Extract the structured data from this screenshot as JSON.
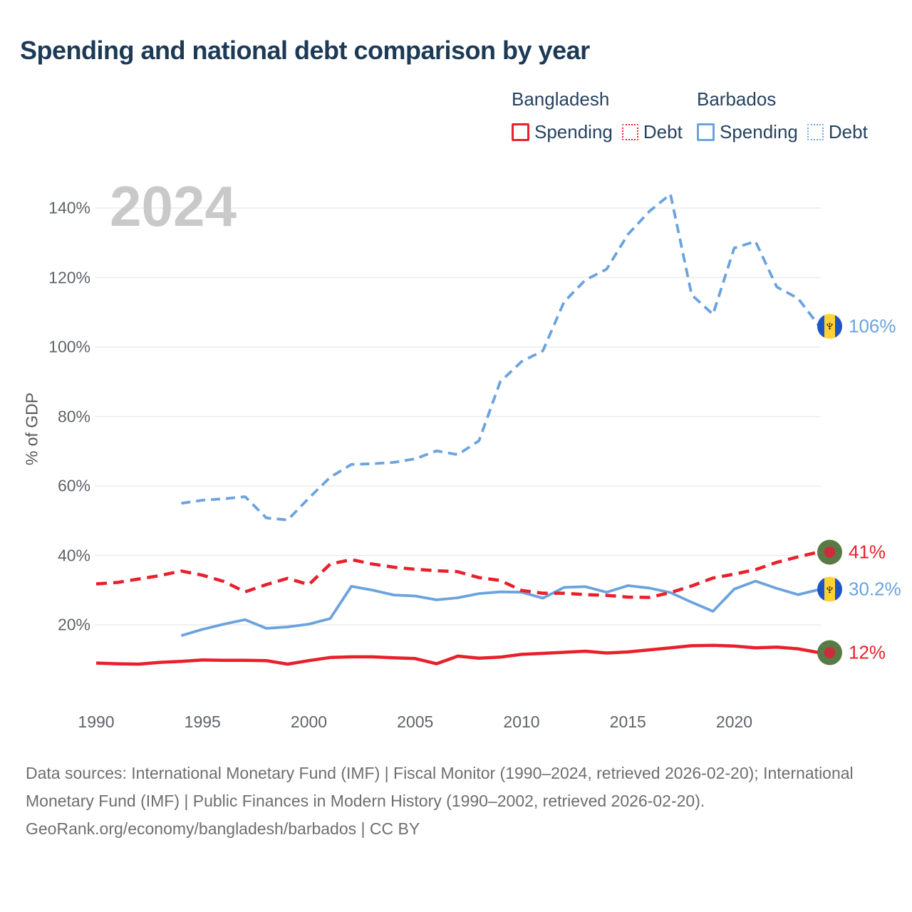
{
  "title": "Spending and national debt comparison by year",
  "watermark": "2024",
  "y_axis_title": "% of GDP",
  "icons": {
    "barbados_trident": "♆",
    "bangladesh_flag": "green circle with red disc",
    "barbados_flag": "blue-gold-blue circle with black trident"
  },
  "colors": {
    "bangladesh_line": "#e8202c",
    "barbados_line": "#6ba3de",
    "title_text": "#1c3a55",
    "legend_text": "#27425f",
    "axis_text": "#5f6368",
    "gridline": "#ebebeb",
    "watermark": "#c9c9c9",
    "footer_text": "#6e6e6e",
    "bangladesh_flag_field": "#5a7a45",
    "bangladesh_flag_disc": "#ce2b3d",
    "barbados_flag_band": "#1e55c4",
    "barbados_flag_gold": "#ffd233"
  },
  "legend": {
    "groups": [
      {
        "header": "Bangladesh",
        "color": "#e8202c",
        "items": [
          {
            "label": "Spending",
            "line_style": "solid"
          },
          {
            "label": "Debt",
            "line_style": "dotted"
          }
        ]
      },
      {
        "header": "Barbados",
        "color": "#6ba3de",
        "items": [
          {
            "label": "Spending",
            "line_style": "solid"
          },
          {
            "label": "Debt",
            "line_style": "dotted"
          }
        ]
      }
    ]
  },
  "chart_data": {
    "type": "line",
    "title": "Spending and national debt comparison by year",
    "xlabel": "",
    "ylabel": "% of GDP",
    "xlim": [
      1990,
      2024
    ],
    "ylim": [
      0,
      148
    ],
    "grid": "horizontal",
    "legend_position": "top-right",
    "x_ticks": [
      {
        "label": "1990",
        "value": 1990
      },
      {
        "label": "1995",
        "value": 1995
      },
      {
        "label": "2000",
        "value": 2000
      },
      {
        "label": "2005",
        "value": 2005
      },
      {
        "label": "2010",
        "value": 2010
      },
      {
        "label": "2015",
        "value": 2015
      },
      {
        "label": "2020",
        "value": 2020
      }
    ],
    "y_ticks": [
      {
        "label": "20%",
        "value": 20
      },
      {
        "label": "40%",
        "value": 40
      },
      {
        "label": "60%",
        "value": 60
      },
      {
        "label": "80%",
        "value": 80
      },
      {
        "label": "100%",
        "value": 100
      },
      {
        "label": "120%",
        "value": 120
      },
      {
        "label": "140%",
        "value": 140
      }
    ],
    "series": [
      {
        "id": "barbados-spending",
        "name": "Barbados Spending",
        "color": "#6ba3de",
        "line_style": "solid",
        "start_year": 1994,
        "values": [
          16.9,
          18.7,
          20.2,
          21.5,
          19.0,
          19.4,
          20.2,
          21.8,
          31.1,
          30.0,
          28.6,
          28.3,
          27.2,
          27.8,
          29.0,
          29.5,
          29.4,
          27.7,
          30.8,
          31.0,
          29.4,
          31.3,
          30.6,
          29.3,
          26.5,
          23.9,
          30.3,
          32.6,
          30.5,
          28.7,
          30.2
        ]
      },
      {
        "id": "bangladesh-spending",
        "name": "Bangladesh Spending",
        "color": "#e8202c",
        "line_style": "solid",
        "start_year": 1990,
        "values": [
          9.0,
          8.8,
          8.7,
          9.2,
          9.5,
          9.9,
          9.8,
          9.8,
          9.7,
          8.7,
          9.7,
          10.6,
          10.8,
          10.8,
          10.5,
          10.3,
          8.8,
          11.0,
          10.4,
          10.7,
          11.5,
          11.8,
          12.1,
          12.4,
          11.9,
          12.2,
          12.8,
          13.4,
          14.0,
          14.1,
          13.9,
          13.4,
          13.6,
          13.1,
          12.0
        ]
      },
      {
        "id": "bangladesh-debt",
        "name": "Bangladesh Debt",
        "color": "#e8202c",
        "line_style": "dashed",
        "start_year": 1990,
        "values": [
          31.8,
          32.2,
          33.2,
          34.2,
          35.5,
          34.3,
          32.5,
          29.5,
          31.6,
          33.4,
          31.6,
          37.5,
          38.8,
          37.5,
          36.6,
          36.0,
          35.6,
          35.3,
          33.6,
          32.8,
          29.9,
          29.1,
          29.1,
          28.7,
          28.5,
          28.0,
          27.9,
          29.3,
          31.2,
          33.5,
          34.6,
          35.9,
          38.0,
          39.6,
          41.0
        ]
      },
      {
        "id": "barbados-debt",
        "name": "Barbados Debt",
        "color": "#6ba3de",
        "line_style": "dashed",
        "start_year": 1994,
        "values": [
          55.0,
          55.9,
          56.3,
          56.9,
          50.8,
          50.2,
          56.5,
          62.5,
          66.2,
          66.4,
          66.8,
          67.8,
          70.1,
          69.0,
          73.0,
          90.0,
          95.8,
          98.9,
          113.0,
          119.3,
          122.4,
          132.4,
          139.0,
          144.0,
          115.0,
          109.4,
          128.5,
          130.4,
          117.3,
          114.0,
          106.0
        ]
      }
    ]
  },
  "end_labels": [
    {
      "series": "barbados-debt",
      "flag": "barbados",
      "label": "106%",
      "value": 106,
      "color": "#6ba3de"
    },
    {
      "series": "bangladesh-debt",
      "flag": "bangladesh",
      "label": "41%",
      "value": 41,
      "color": "#e8202c"
    },
    {
      "series": "barbados-spending",
      "flag": "barbados",
      "label": "30.2%",
      "value": 30.2,
      "color": "#6ba3de"
    },
    {
      "series": "bangladesh-spending",
      "flag": "bangladesh",
      "label": "12%",
      "value": 12,
      "color": "#e8202c"
    }
  ],
  "footer": {
    "sources": "Data sources: International Monetary Fund (IMF) | Fiscal Monitor (1990–2024, retrieved 2026-02-20); International Monetary Fund (IMF) | Public Finances in Modern History (1990–2002, retrieved 2026-02-20).",
    "attribution": "GeoRank.org/economy/bangladesh/barbados | CC BY"
  }
}
